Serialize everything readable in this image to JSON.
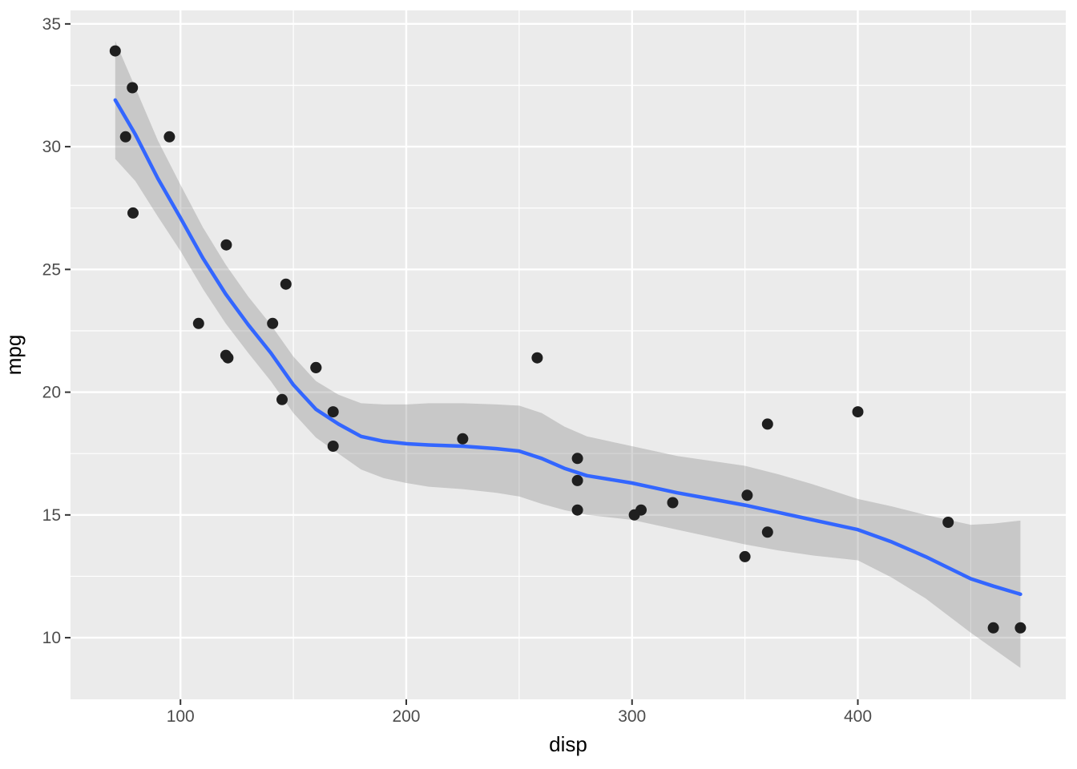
{
  "chart_data": {
    "type": "scatter",
    "title": "",
    "xlabel": "disp",
    "ylabel": "mpg",
    "xlim": [
      51.3,
      492.1
    ],
    "ylim": [
      7.49,
      35.55
    ],
    "x_ticks": [
      100,
      200,
      300,
      400
    ],
    "x_tick_labels": [
      "100",
      "200",
      "300",
      "400"
    ],
    "x_minor_ticks": [
      150,
      250,
      350,
      450
    ],
    "y_ticks": [
      10,
      15,
      20,
      25,
      30,
      35
    ],
    "y_tick_labels": [
      "10",
      "15",
      "20",
      "25",
      "30",
      "35"
    ],
    "y_minor_ticks": [
      12.5,
      17.5,
      22.5,
      27.5,
      32.5
    ],
    "grid": true,
    "legend": "none",
    "points": [
      [
        160.0,
        21.0
      ],
      [
        160.0,
        21.0
      ],
      [
        108.0,
        22.8
      ],
      [
        258.0,
        21.4
      ],
      [
        360.0,
        18.7
      ],
      [
        225.0,
        18.1
      ],
      [
        360.0,
        14.3
      ],
      [
        146.7,
        24.4
      ],
      [
        140.8,
        22.8
      ],
      [
        167.6,
        19.2
      ],
      [
        167.6,
        17.8
      ],
      [
        275.8,
        16.4
      ],
      [
        275.8,
        17.3
      ],
      [
        275.8,
        15.2
      ],
      [
        472.0,
        10.4
      ],
      [
        460.0,
        10.4
      ],
      [
        440.0,
        14.7
      ],
      [
        78.7,
        32.4
      ],
      [
        75.7,
        30.4
      ],
      [
        71.1,
        33.9
      ],
      [
        120.1,
        21.5
      ],
      [
        318.0,
        15.5
      ],
      [
        304.0,
        15.2
      ],
      [
        350.0,
        13.3
      ],
      [
        400.0,
        19.2
      ],
      [
        79.0,
        27.3
      ],
      [
        120.3,
        26.0
      ],
      [
        95.1,
        30.4
      ],
      [
        351.0,
        15.8
      ],
      [
        145.0,
        19.7
      ],
      [
        301.0,
        15.0
      ],
      [
        121.0,
        21.4
      ]
    ],
    "smooth_line": {
      "method": "loess",
      "x": [
        71.1,
        80,
        90,
        100,
        110,
        120,
        130,
        140,
        150,
        160,
        170,
        180,
        190,
        200,
        210,
        225,
        240,
        250,
        260,
        270,
        280,
        290,
        300,
        310,
        320,
        335,
        350,
        365,
        380,
        400,
        415,
        430,
        450,
        460,
        472
      ],
      "y": [
        31.9,
        30.5,
        28.7,
        27.1,
        25.45,
        24.0,
        22.75,
        21.6,
        20.3,
        19.3,
        18.7,
        18.2,
        18.0,
        17.9,
        17.85,
        17.8,
        17.7,
        17.6,
        17.3,
        16.9,
        16.6,
        16.45,
        16.3,
        16.1,
        15.9,
        15.65,
        15.4,
        15.1,
        14.8,
        14.4,
        13.9,
        13.3,
        12.4,
        12.1,
        11.77
      ]
    },
    "confidence_ribbon": {
      "x": [
        71.1,
        80,
        90,
        100,
        110,
        120,
        130,
        140,
        150,
        160,
        170,
        180,
        190,
        200,
        210,
        225,
        240,
        250,
        260,
        270,
        280,
        290,
        300,
        310,
        320,
        335,
        350,
        365,
        380,
        400,
        415,
        430,
        450,
        460,
        472
      ],
      "upper": [
        34.3,
        32.4,
        30.25,
        28.45,
        26.7,
        25.2,
        23.9,
        22.75,
        21.45,
        20.45,
        19.9,
        19.55,
        19.5,
        19.5,
        19.55,
        19.55,
        19.5,
        19.45,
        19.15,
        18.6,
        18.2,
        18.0,
        17.8,
        17.6,
        17.4,
        17.2,
        17.0,
        16.65,
        16.25,
        15.65,
        15.35,
        15.0,
        14.6,
        14.65,
        14.77
      ],
      "lower": [
        29.5,
        28.6,
        27.15,
        25.75,
        24.2,
        22.8,
        21.6,
        20.45,
        19.15,
        18.15,
        17.5,
        16.85,
        16.5,
        16.3,
        16.15,
        16.05,
        15.9,
        15.75,
        15.45,
        15.2,
        15.0,
        14.9,
        14.8,
        14.6,
        14.4,
        14.1,
        13.8,
        13.55,
        13.35,
        13.15,
        12.45,
        11.6,
        10.2,
        9.55,
        8.77
      ]
    },
    "colors": {
      "panel_background": "#EBEBEB",
      "grid_major": "#FFFFFF",
      "grid_minor": "#FFFFFF",
      "smooth_line": "#3366FF",
      "ribbon": "rgba(120,120,120,0.30)",
      "point": "#1f1f1f",
      "tick_mark": "#333333",
      "tick_label": "#4d4d4d",
      "axis_title": "#000000",
      "figure_background": "#FFFFFF"
    }
  }
}
